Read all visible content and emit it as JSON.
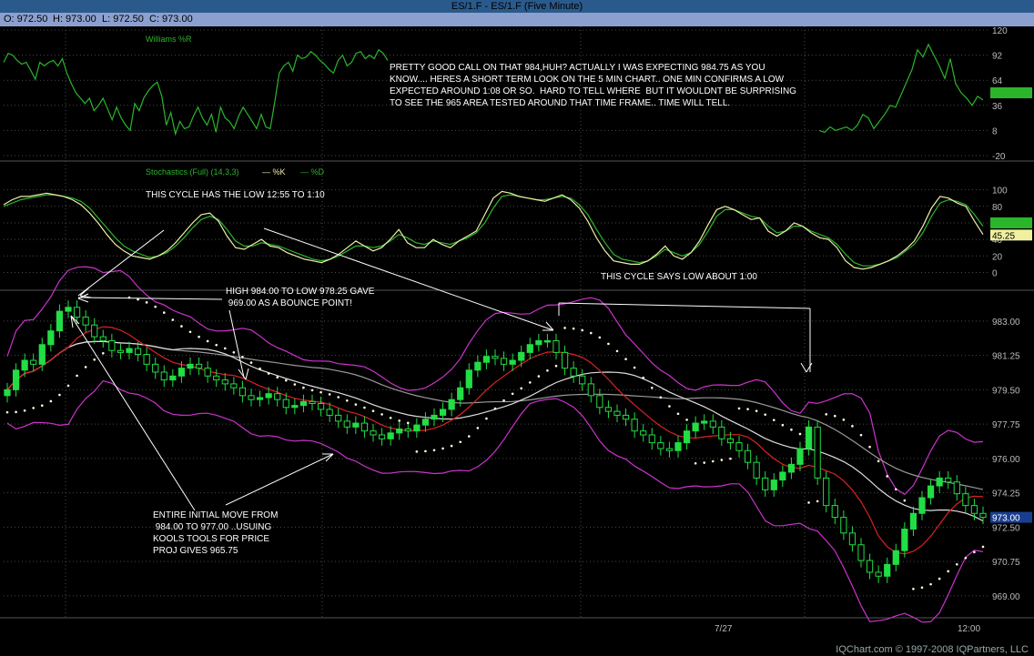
{
  "window": {
    "title": "ES/1.F - ES/1.F (Five Minute)"
  },
  "ohlc": {
    "open": "O: 972.50",
    "high": "H: 973.00",
    "low": "L: 972.50",
    "close": "C: 973.00"
  },
  "footer": "IQChart.com © 1997-2008 IQPartners, LLC",
  "colors": {
    "background": "#000000",
    "grid": "#4a4a4a",
    "williams": "#2bb52b",
    "stoch_k": "#eeeeaa",
    "stoch_d": "#2bb52b",
    "candle_up": "#22dd44",
    "candle_down": "#000000",
    "candle_outline": "#22dd44",
    "bollinger": "#cc33cc",
    "ma_red": "#dd2222",
    "ma_white": "#dddddd",
    "ma_gray": "#999999",
    "sar": "#ffffdd",
    "annotation": "#ffffff"
  },
  "annotations": {
    "cycle_1": "THIS CYCLE HAS THE LOW 12:55 TO 1:10",
    "cycle_2": "THIS CYCLE SAYS LOW ABOUT 1:00",
    "high_low": "HIGH 984.00 TO LOW 978.25 GAVE\n 969.00 AS A BOUNCE POINT!",
    "top_note": "PRETTY GOOD CALL ON THAT 984,HUH? ACTUALLY I WAS EXPECTING 984.75 AS YOU\nKNOW.... HERES A SHORT TERM LOOK ON THE 5 MIN CHART.. ONE MIN CONFIRMS A LOW\nEXPECTED AROUND 1:08 OR SO.  HARD TO TELL WHERE  BUT IT WOULDNT BE SURPRISING\nTO SEE THE 965 AREA TESTED AROUND THAT TIME FRAME.. TIME WILL TELL.",
    "move_note": "ENTIRE INITIAL MOVE FROM\n 984.00 TO 977.00 ..USUING\nKOOLS TOOLS FOR PRICE\nPROJ GIVES 965.75"
  },
  "chart_data": [
    {
      "type": "line",
      "title": "Williams %R",
      "ylim": [
        -20,
        120
      ],
      "y_ticks": [
        "120",
        "92",
        "64",
        "36",
        "8",
        "-20"
      ],
      "current_value": "",
      "series": [
        {
          "values": [
            84,
            94,
            92,
            86,
            82,
            84,
            75,
            65,
            84,
            80,
            84,
            86,
            80,
            88,
            72,
            60,
            50,
            44,
            38,
            44,
            30,
            36,
            44,
            32,
            20,
            34,
            22,
            14,
            8,
            38,
            30,
            44,
            52,
            58,
            62,
            46,
            14,
            28,
            4,
            18,
            10,
            12,
            24,
            34,
            22,
            14,
            26,
            6,
            34,
            22,
            18,
            10,
            24,
            34,
            26,
            18,
            10,
            26,
            12,
            10,
            40,
            72,
            80,
            84,
            74,
            92,
            88,
            90,
            96,
            92,
            86,
            82,
            76,
            72,
            86,
            92,
            80,
            84,
            94,
            96,
            88,
            92,
            88,
            98,
            94,
            86
          ]
        },
        {
          "values": [
            8,
            6,
            12,
            8,
            10,
            12,
            8,
            14,
            26,
            22,
            10,
            18,
            26,
            36,
            34,
            48,
            62,
            76,
            98,
            90,
            104,
            92,
            80,
            66,
            88,
            60,
            50,
            44,
            36,
            46,
            42
          ]
        }
      ]
    },
    {
      "type": "line",
      "title": "Stochastics (Full) (14,3,3)",
      "legend": [
        "%K",
        "%D"
      ],
      "ylim": [
        -5,
        115
      ],
      "y_ticks": [
        "100",
        "80",
        "60",
        "40",
        "20",
        "0"
      ],
      "current_value": "45.25",
      "series": [
        {
          "name": "%K",
          "values": [
            82,
            88,
            92,
            92,
            94,
            96,
            94,
            92,
            88,
            82,
            72,
            60,
            46,
            34,
            26,
            20,
            18,
            16,
            20,
            26,
            36,
            48,
            60,
            70,
            72,
            62,
            44,
            30,
            28,
            34,
            40,
            32,
            30,
            24,
            20,
            16,
            14,
            12,
            16,
            22,
            30,
            38,
            32,
            26,
            30,
            40,
            52,
            36,
            30,
            30,
            40,
            34,
            30,
            38,
            44,
            50,
            70,
            90,
            98,
            96,
            92,
            90,
            88,
            86,
            90,
            94,
            88,
            78,
            62,
            42,
            26,
            14,
            12,
            10,
            10,
            14,
            22,
            32,
            20,
            16,
            24,
            38,
            58,
            76,
            80,
            76,
            70,
            64,
            66,
            50,
            44,
            50,
            60,
            56,
            48,
            42,
            40,
            30,
            14,
            6,
            4,
            6,
            10,
            14,
            20,
            28,
            38,
            56,
            78,
            92,
            90,
            84,
            80,
            62,
            46
          ]
        },
        {
          "name": "%D",
          "values": [
            80,
            84,
            88,
            90,
            92,
            94,
            94,
            92,
            90,
            86,
            78,
            66,
            54,
            42,
            32,
            26,
            22,
            18,
            20,
            24,
            32,
            42,
            54,
            64,
            68,
            64,
            52,
            38,
            32,
            32,
            36,
            34,
            32,
            28,
            24,
            20,
            16,
            14,
            16,
            20,
            26,
            32,
            32,
            30,
            32,
            38,
            46,
            42,
            36,
            34,
            38,
            36,
            34,
            38,
            42,
            48,
            60,
            78,
            92,
            94,
            92,
            90,
            88,
            88,
            90,
            92,
            90,
            82,
            70,
            52,
            36,
            22,
            16,
            14,
            12,
            14,
            20,
            28,
            24,
            20,
            24,
            34,
            50,
            68,
            76,
            76,
            72,
            68,
            66,
            56,
            48,
            50,
            56,
            56,
            50,
            46,
            42,
            34,
            22,
            12,
            8,
            8,
            10,
            14,
            18,
            26,
            34,
            48,
            68,
            84,
            88,
            86,
            82,
            70,
            56
          ]
        }
      ]
    },
    {
      "type": "candlestick",
      "title": "ES/1.F (Five Minute)",
      "x_labels": [
        "7/27",
        "12:00"
      ],
      "ylim": [
        968.9,
        984.2
      ],
      "y_ticks": [
        "983.00",
        "981.25",
        "979.50",
        "977.75",
        "976.00",
        "974.25",
        "972.50",
        "970.75",
        "969.00"
      ],
      "current_value": "973.00",
      "closes": [
        979.5,
        980.5,
        981.0,
        980.8,
        981.8,
        982.5,
        983.5,
        983.7,
        983.2,
        982.8,
        982.2,
        982.0,
        981.5,
        981.4,
        981.6,
        981.3,
        980.8,
        980.4,
        980.0,
        980.2,
        980.6,
        980.8,
        980.6,
        980.2,
        980.0,
        979.8,
        979.6,
        979.2,
        979.0,
        979.1,
        979.3,
        979.0,
        978.6,
        978.7,
        978.9,
        978.8,
        978.5,
        978.2,
        977.9,
        977.6,
        977.8,
        977.4,
        977.2,
        977.0,
        977.3,
        977.5,
        977.4,
        977.7,
        978.0,
        978.2,
        978.5,
        979.0,
        979.6,
        980.5,
        980.9,
        981.2,
        981.1,
        980.8,
        981.0,
        981.4,
        981.8,
        982.0,
        982.0,
        981.4,
        980.6,
        980.2,
        979.8,
        979.2,
        978.6,
        978.4,
        978.2,
        978.0,
        977.4,
        977.2,
        976.8,
        976.5,
        976.4,
        976.8,
        977.4,
        977.8,
        977.9,
        977.6,
        977.0,
        976.8,
        976.4,
        975.8,
        975.0,
        974.4,
        974.9,
        975.3,
        975.7,
        976.5,
        977.6,
        975.0,
        973.6,
        973.0,
        972.2,
        971.6,
        970.8,
        970.2,
        970.0,
        970.6,
        971.3,
        972.4,
        973.2,
        974.0,
        974.6,
        975.0,
        974.8,
        974.2,
        973.6,
        973.2,
        973.0
      ]
    }
  ]
}
